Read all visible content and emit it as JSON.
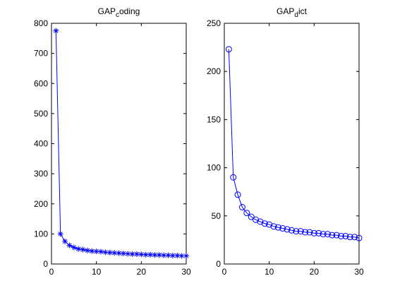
{
  "chart_data": [
    {
      "type": "line",
      "title_main": "GAP",
      "title_sub": "c",
      "title_tail": "oding",
      "xlim": [
        0,
        30
      ],
      "ylim": [
        0,
        800
      ],
      "xticks": [
        0,
        10,
        20,
        30
      ],
      "yticks": [
        0,
        100,
        200,
        300,
        400,
        500,
        600,
        700,
        800
      ],
      "x_tick_labels": [
        "0",
        "10",
        "20",
        "30"
      ],
      "y_tick_labels": [
        "0",
        "100",
        "200",
        "300",
        "400",
        "500",
        "600",
        "700",
        "800"
      ],
      "marker": "asterisk",
      "color": "#0000ff",
      "series": [
        {
          "x": [
            1,
            2,
            3,
            4,
            5,
            6,
            7,
            8,
            9,
            10,
            11,
            12,
            13,
            14,
            15,
            16,
            17,
            18,
            19,
            20,
            21,
            22,
            23,
            24,
            25,
            26,
            27,
            28,
            29,
            30
          ],
          "values": [
            775,
            100,
            75,
            62,
            55,
            50,
            48,
            45,
            43,
            42,
            41,
            39,
            38,
            37,
            36,
            35,
            34,
            33,
            33,
            32,
            31,
            31,
            30,
            30,
            29,
            29,
            28,
            28,
            27,
            27
          ]
        }
      ]
    },
    {
      "type": "line",
      "title_main": "GAP",
      "title_sub": "d",
      "title_tail": "ict",
      "xlim": [
        0,
        30
      ],
      "ylim": [
        0,
        250
      ],
      "xticks": [
        0,
        10,
        20,
        30
      ],
      "yticks": [
        0,
        50,
        100,
        150,
        200,
        250
      ],
      "x_tick_labels": [
        "0",
        "10",
        "20",
        "30"
      ],
      "y_tick_labels": [
        "0",
        "50",
        "100",
        "150",
        "200",
        "250"
      ],
      "marker": "circle",
      "color": "#0000ff",
      "series": [
        {
          "x": [
            1,
            2,
            3,
            4,
            5,
            6,
            7,
            8,
            9,
            10,
            11,
            12,
            13,
            14,
            15,
            16,
            17,
            18,
            19,
            20,
            21,
            22,
            23,
            24,
            25,
            26,
            27,
            28,
            29,
            30
          ],
          "values": [
            223,
            90,
            72,
            59,
            53,
            49,
            46,
            44,
            42,
            41,
            39,
            38,
            37,
            36,
            35,
            34,
            34,
            33,
            33,
            32,
            32,
            31,
            31,
            30,
            30,
            29,
            29,
            28,
            28,
            27
          ]
        }
      ]
    }
  ]
}
